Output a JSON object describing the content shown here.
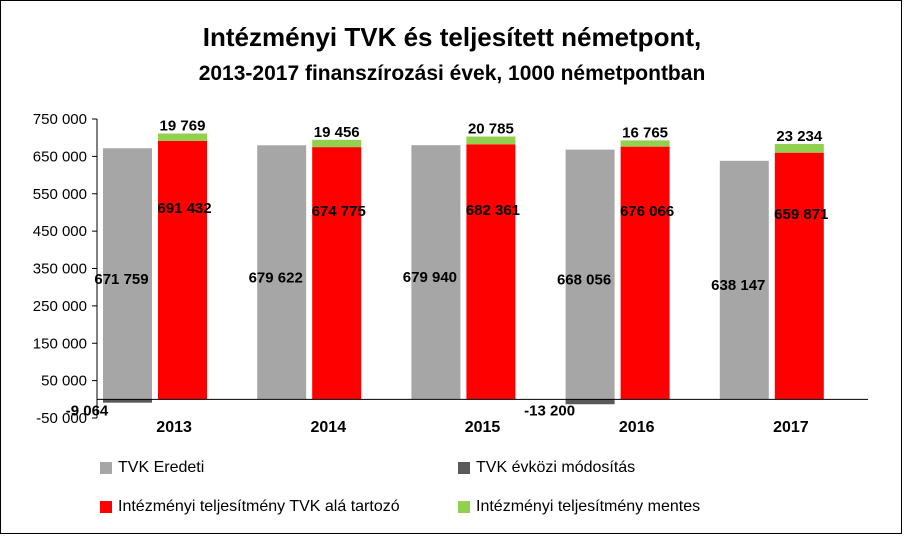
{
  "chart_data": {
    "type": "bar",
    "title": "Intézményi TVK és teljesített németpont,",
    "subtitle": "2013-2017 finanszírozási évek, 1000 németpontban",
    "categories": [
      "2013",
      "2014",
      "2015",
      "2016",
      "2017"
    ],
    "ylim": [
      -50000,
      750000
    ],
    "yticks": [
      -50000,
      50000,
      150000,
      250000,
      350000,
      450000,
      550000,
      650000,
      750000
    ],
    "ytick_labels": [
      "-50 000",
      "50 000",
      "150 000",
      "250 000",
      "350 000",
      "450 000",
      "550 000",
      "650 000",
      "750 000"
    ],
    "grid": false,
    "legend_position": "bottom",
    "series": [
      {
        "name": "TVK Eredeti",
        "color": "#a6a6a6",
        "stack": "tvk",
        "values": [
          671759,
          679622,
          679940,
          668056,
          638147
        ],
        "labels": [
          "671 759",
          "679 622",
          "679 940",
          "668 056",
          "638 147"
        ]
      },
      {
        "name": "TVK évközi módosítás",
        "color": "#595959",
        "stack": "tvk",
        "values": [
          -9064,
          0,
          0,
          -13200,
          0
        ],
        "labels": [
          "-9 064",
          "",
          "",
          "-13 200",
          ""
        ]
      },
      {
        "name": "Intézményi teljesítmény TVK alá tartozó",
        "color": "#ff0000",
        "stack": "perf",
        "values": [
          691432,
          674775,
          682361,
          676066,
          659871
        ],
        "labels": [
          "691 432",
          "674 775",
          "682 361",
          "676 066",
          "659 871"
        ]
      },
      {
        "name": "Intézményi teljesítmény mentes",
        "color": "#92d050",
        "stack": "perf",
        "values": [
          19769,
          19456,
          20785,
          16765,
          23234
        ],
        "labels": [
          "19 769",
          "19 456",
          "20 785",
          "16 765",
          "23 234"
        ]
      }
    ]
  }
}
